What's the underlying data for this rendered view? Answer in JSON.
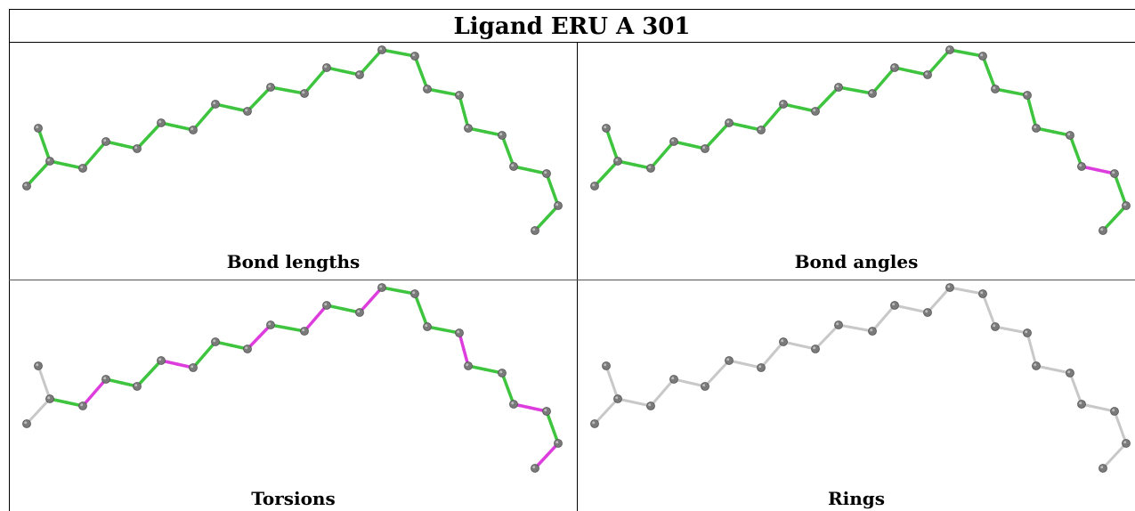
{
  "title": "Ligand ERU A 301",
  "colors": {
    "ok": "#3ec43e",
    "outlier": "#dd3ddd",
    "neutral": "#c8c8c8",
    "atom": "#7a7a7a"
  },
  "panels": [
    {
      "caption": "Bond lengths",
      "bond_status": [
        "ok",
        "ok",
        "ok",
        "ok",
        "ok",
        "ok",
        "ok",
        "ok",
        "ok",
        "ok",
        "ok",
        "ok",
        "ok",
        "ok",
        "ok",
        "ok",
        "ok",
        "ok",
        "ok",
        "ok",
        "ok",
        "ok",
        "ok",
        "ok",
        "ok",
        "ok"
      ]
    },
    {
      "caption": "Bond angles",
      "bond_status": [
        "ok",
        "ok",
        "ok",
        "ok",
        "ok",
        "ok",
        "ok",
        "ok",
        "ok",
        "ok",
        "ok",
        "ok",
        "ok",
        "ok",
        "ok",
        "ok",
        "ok",
        "ok",
        "ok",
        "ok",
        "outlier",
        "ok",
        "ok",
        "ok",
        "ok",
        "ok"
      ]
    },
    {
      "caption": "Torsions",
      "bond_status": [
        "neutral",
        "neutral",
        "ok",
        "outlier",
        "ok",
        "ok",
        "outlier",
        "ok",
        "ok",
        "outlier",
        "ok",
        "outlier",
        "ok",
        "outlier",
        "ok",
        "ok",
        "ok",
        "outlier",
        "ok",
        "ok",
        "outlier",
        "ok",
        "outlier",
        "outlier",
        "neutral",
        "ok"
      ]
    },
    {
      "caption": "Rings",
      "bond_status": [
        "neutral",
        "neutral",
        "neutral",
        "neutral",
        "neutral",
        "neutral",
        "neutral",
        "neutral",
        "neutral",
        "neutral",
        "neutral",
        "neutral",
        "neutral",
        "neutral",
        "neutral",
        "neutral",
        "neutral",
        "neutral",
        "neutral",
        "neutral",
        "neutral",
        "neutral",
        "neutral",
        "neutral",
        "neutral",
        "neutral"
      ]
    }
  ]
}
